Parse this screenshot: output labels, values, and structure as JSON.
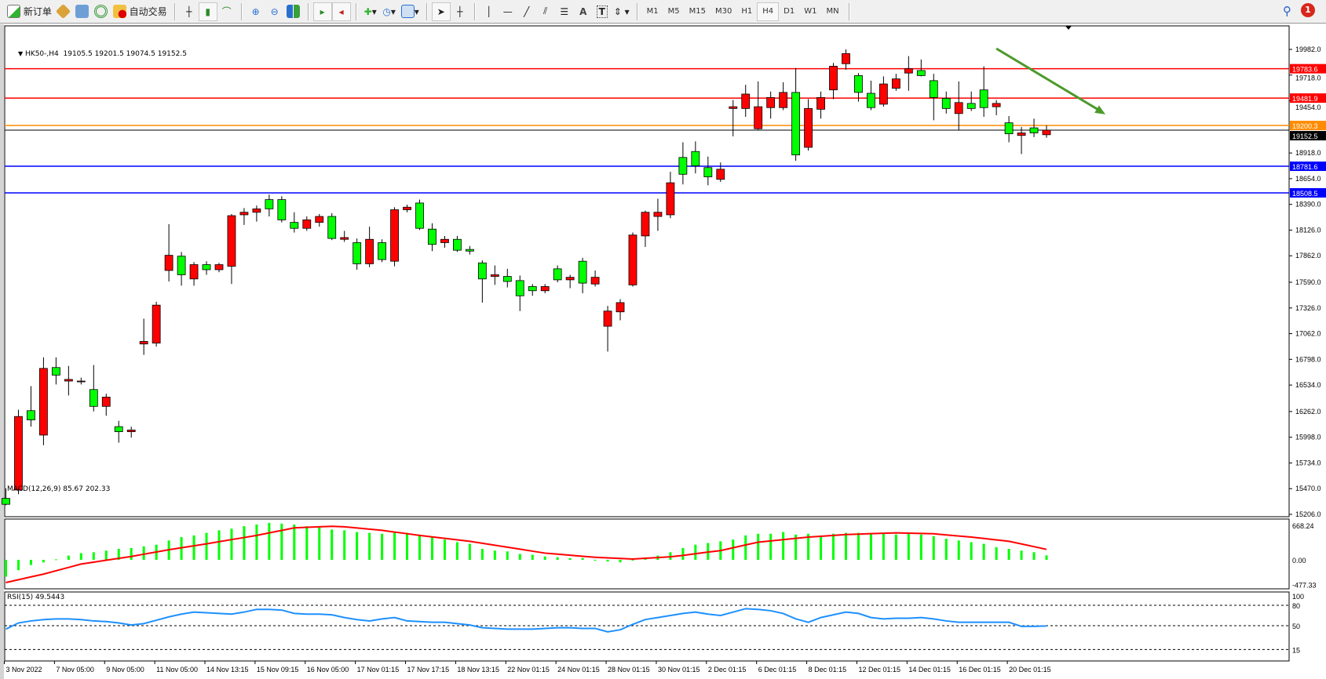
{
  "toolbar": {
    "new_order_label": "新订单",
    "auto_trading_label": "自动交易",
    "icons": [
      "new-order-icon",
      "market-watch-icon",
      "data-window-icon",
      "navigator-icon",
      "auto-trading-icon",
      "bar-chart-icon",
      "candlestick-icon",
      "line-chart-icon",
      "zoom-in-icon",
      "zoom-out-icon",
      "tile-windows-icon",
      "auto-scroll-icon",
      "chart-shift-icon",
      "new-chart-icon",
      "periods-icon",
      "templates-icon",
      "cursor-icon",
      "crosshair-icon",
      "vertical-line-icon",
      "horizontal-line-icon",
      "trendline-icon",
      "equidistant-channel-icon",
      "fibonacci-icon",
      "text-icon",
      "text-label-icon",
      "arrows-icon",
      "search-icon",
      "notifications-icon"
    ],
    "text_tool": "A",
    "label_tool": "T",
    "timeframes": [
      "M1",
      "M5",
      "M15",
      "M30",
      "H1",
      "H4",
      "D1",
      "W1",
      "MN"
    ],
    "active_timeframe": "H4",
    "notification_count": "1"
  },
  "chart_header": {
    "symbol": "HK50-,H4",
    "ohlc": "19105.5 19201.5 19074.5 19152.5"
  },
  "chart_data": {
    "type": "candlestick",
    "up_color": "#ff0000",
    "down_color": "#00ff00",
    "price_axis_ticks": [
      "19982.0",
      "19718.0",
      "19454.0",
      "18918.0",
      "18654.0",
      "18390.0",
      "18126.0",
      "17862.0",
      "17590.0",
      "17326.0",
      "17062.0",
      "16798.0",
      "16534.0",
      "16262.0",
      "15998.0",
      "15734.0",
      "15470.0",
      "15206.0"
    ],
    "ylim": [
      15206,
      19982
    ],
    "time_labels": [
      "3 Nov 2022",
      "7 Nov 05:00",
      "9 Nov 05:00",
      "11 Nov 05:00",
      "14 Nov 13:15",
      "15 Nov 09:15",
      "16 Nov 05:00",
      "17 Nov 01:15",
      "17 Nov 17:15",
      "18 Nov 13:15",
      "22 Nov 01:15",
      "24 Nov 01:15",
      "28 Nov 01:15",
      "30 Nov 01:15",
      "2 Dec 01:15",
      "6 Dec 01:15",
      "8 Dec 01:15",
      "12 Dec 01:15",
      "14 Dec 01:15",
      "16 Dec 01:15",
      "20 Dec 01:15"
    ],
    "ohlc": [
      [
        15370,
        15474,
        15300,
        15309
      ],
      [
        15456,
        16280,
        15413,
        16211
      ],
      [
        16271,
        16523,
        16107,
        16176
      ],
      [
        16020,
        16818,
        15916,
        16705
      ],
      [
        16714,
        16818,
        16540,
        16636
      ],
      [
        16575,
        16731,
        16427,
        16592
      ],
      [
        16567,
        16610,
        16540,
        16575
      ],
      [
        16488,
        16740,
        16263,
        16315
      ],
      [
        16315,
        16445,
        16219,
        16410
      ],
      [
        16107,
        16167,
        15942,
        16055
      ],
      [
        16055,
        16107,
        15994,
        16072
      ],
      [
        16956,
        17216,
        16844,
        16982
      ],
      [
        16965,
        17390,
        16930,
        17355
      ],
      [
        17711,
        18187,
        17598,
        17867
      ],
      [
        17858,
        17901,
        17555,
        17667
      ],
      [
        17624,
        17797,
        17555,
        17771
      ],
      [
        17771,
        17806,
        17667,
        17719
      ],
      [
        17719,
        17789,
        17693,
        17771
      ],
      [
        17754,
        18291,
        17572,
        18274
      ],
      [
        18283,
        18352,
        18179,
        18309
      ],
      [
        18309,
        18378,
        18213,
        18344
      ],
      [
        18439,
        18491,
        18266,
        18344
      ],
      [
        18439,
        18474,
        18205,
        18231
      ],
      [
        18205,
        18309,
        18101,
        18144
      ],
      [
        18144,
        18266,
        18118,
        18231
      ],
      [
        18205,
        18291,
        18161,
        18266
      ],
      [
        18266,
        18300,
        18023,
        18040
      ],
      [
        18031,
        18118,
        18005,
        18049
      ],
      [
        17997,
        18040,
        17719,
        17780
      ],
      [
        17780,
        18161,
        17745,
        18031
      ],
      [
        17997,
        18031,
        17797,
        17823
      ],
      [
        17806,
        18361,
        17754,
        18335
      ],
      [
        18335,
        18387,
        18309,
        18361
      ],
      [
        18404,
        18439,
        18127,
        18144
      ],
      [
        18136,
        18196,
        17910,
        17979
      ],
      [
        17997,
        18066,
        17945,
        18031
      ],
      [
        18031,
        18066,
        17901,
        17919
      ],
      [
        17927,
        17962,
        17875,
        17910
      ],
      [
        17789,
        17815,
        17381,
        17624
      ],
      [
        17650,
        17763,
        17563,
        17667
      ],
      [
        17650,
        17728,
        17537,
        17598
      ],
      [
        17607,
        17659,
        17294,
        17451
      ],
      [
        17546,
        17572,
        17451,
        17503
      ],
      [
        17503,
        17572,
        17477,
        17546
      ],
      [
        17728,
        17763,
        17589,
        17615
      ],
      [
        17615,
        17667,
        17529,
        17641
      ],
      [
        17806,
        17841,
        17477,
        17581
      ],
      [
        17572,
        17711,
        17546,
        17641
      ],
      [
        17138,
        17347,
        16878,
        17294
      ],
      [
        17286,
        17416,
        17199,
        17381
      ],
      [
        17563,
        18101,
        17546,
        18075
      ],
      [
        18066,
        18326,
        17953,
        18309
      ],
      [
        18266,
        18448,
        18118,
        18309
      ],
      [
        18283,
        18725,
        18248,
        18612
      ],
      [
        18872,
        19028,
        18595,
        18699
      ],
      [
        18933,
        19037,
        18708,
        18786
      ],
      [
        18768,
        18881,
        18586,
        18673
      ],
      [
        18647,
        18820,
        18621,
        18751
      ],
      [
        19375,
        19462,
        19089,
        19393
      ],
      [
        19375,
        19618,
        19289,
        19523
      ],
      [
        19167,
        19653,
        19158,
        19393
      ],
      [
        19384,
        19549,
        19271,
        19488
      ],
      [
        19384,
        19644,
        19358,
        19540
      ],
      [
        19540,
        19791,
        18838,
        18898
      ],
      [
        18976,
        19471,
        18942,
        19375
      ],
      [
        19367,
        19549,
        19271,
        19488
      ],
      [
        19566,
        19843,
        19471,
        19809
      ],
      [
        19835,
        19982,
        19774,
        19939
      ],
      [
        19713,
        19739,
        19445,
        19540
      ],
      [
        19531,
        19661,
        19358,
        19384
      ],
      [
        19419,
        19705,
        19393,
        19627
      ],
      [
        19583,
        19731,
        19557,
        19679
      ],
      [
        19739,
        19913,
        19557,
        19783
      ],
      [
        19765,
        19878,
        19705,
        19713
      ],
      [
        19661,
        19731,
        19254,
        19488
      ],
      [
        19479,
        19549,
        19323,
        19375
      ],
      [
        19323,
        19653,
        19150,
        19436
      ],
      [
        19427,
        19549,
        19349,
        19375
      ],
      [
        19566,
        19809,
        19289,
        19384
      ],
      [
        19393,
        19462,
        19306,
        19427
      ],
      [
        19228,
        19297,
        19028,
        19115
      ],
      [
        19098,
        19185,
        18907,
        19124
      ],
      [
        19176,
        19271,
        19081,
        19124
      ],
      [
        19105.5,
        19201.5,
        19074.5,
        19152.5
      ]
    ],
    "horizontal_lines": [
      {
        "price": 19783.6,
        "label": "19783.6",
        "color": "#ff0000"
      },
      {
        "price": 19481.9,
        "label": "19481.9",
        "color": "#ff0000"
      },
      {
        "price": 19200.3,
        "label": "19200.3",
        "color": "#ff8c00"
      },
      {
        "price": 18781.6,
        "label": "18781.6",
        "color": "#0000ff"
      },
      {
        "price": 18508.5,
        "label": "18508.5",
        "color": "#0000ff"
      }
    ],
    "current_price": {
      "price": 19152.5,
      "label": "19152.5",
      "color": "#000000"
    },
    "arrow": {
      "from": [
        79,
        19990
      ],
      "to": [
        87.7,
        19315
      ],
      "color": "#4c9a2a"
    },
    "macd": {
      "label": "MACD(12,26,9) 85.67 202.33",
      "axis_ticks": [
        "668.24",
        "0.00",
        "-477.33"
      ],
      "range": [
        -477.33,
        668.24
      ],
      "histogram_color": "#00ff00",
      "signal_color": "#ff0000",
      "histogram": [
        -326,
        -200,
        -100,
        -50,
        10,
        82,
        130,
        147,
        179,
        212,
        228,
        261,
        293,
        375,
        440,
        473,
        522,
        571,
        603,
        652,
        685,
        717,
        701,
        685,
        652,
        636,
        587,
        571,
        538,
        522,
        505,
        522,
        522,
        489,
        440,
        391,
        342,
        310,
        212,
        179,
        163,
        114,
        98,
        65,
        49,
        33,
        33,
        0,
        -33,
        -49,
        0,
        33,
        82,
        147,
        228,
        293,
        326,
        359,
        391,
        473,
        505,
        505,
        538,
        489,
        505,
        473,
        505,
        522,
        522,
        505,
        505,
        489,
        505,
        489,
        456,
        408,
        375,
        342,
        310,
        245,
        212,
        179,
        147,
        85.67
      ],
      "signal": [
        -440,
        -385,
        -330,
        -277,
        -212,
        -147,
        -82,
        -45,
        -8,
        28,
        65,
        109,
        152,
        196,
        234,
        272,
        310,
        351,
        392,
        432,
        473,
        522,
        570,
        619,
        630,
        640,
        650,
        640,
        617,
        594,
        571,
        538,
        506,
        473,
        445,
        416,
        388,
        359,
        321,
        283,
        245,
        207,
        168,
        130,
        110,
        90,
        69,
        49,
        38,
        27,
        16,
        30,
        44,
        58,
        85,
        118,
        150,
        179,
        233,
        288,
        342,
        366,
        391,
        415,
        440,
        456,
        473,
        489,
        497,
        506,
        514,
        522,
        516,
        511,
        505,
        483,
        462,
        440,
        413,
        386,
        359,
        307,
        255,
        202.33
      ]
    },
    "rsi": {
      "label": "RSI(15) 49.5443",
      "axis_ticks": [
        "100",
        "80",
        "50",
        "15"
      ],
      "levels": [
        80,
        50,
        15
      ],
      "color": "#1e90ff",
      "values": [
        45,
        54,
        57,
        59,
        60,
        60,
        59,
        57,
        56,
        54,
        51,
        53,
        58,
        63,
        67,
        70,
        69,
        68,
        67,
        70,
        74,
        74,
        73,
        68,
        67,
        67,
        66,
        62,
        59,
        57,
        60,
        62,
        57,
        56,
        55,
        55,
        53,
        51,
        47,
        46,
        45,
        45,
        45,
        46,
        47,
        47,
        46,
        46,
        41,
        44,
        52,
        59,
        62,
        65,
        68,
        70,
        67,
        65,
        70,
        75,
        74,
        72,
        68,
        60,
        55,
        62,
        66,
        70,
        68,
        62,
        60,
        61,
        61,
        62,
        60,
        57,
        55,
        55,
        55,
        55,
        55,
        49,
        49,
        49.5443
      ]
    }
  }
}
